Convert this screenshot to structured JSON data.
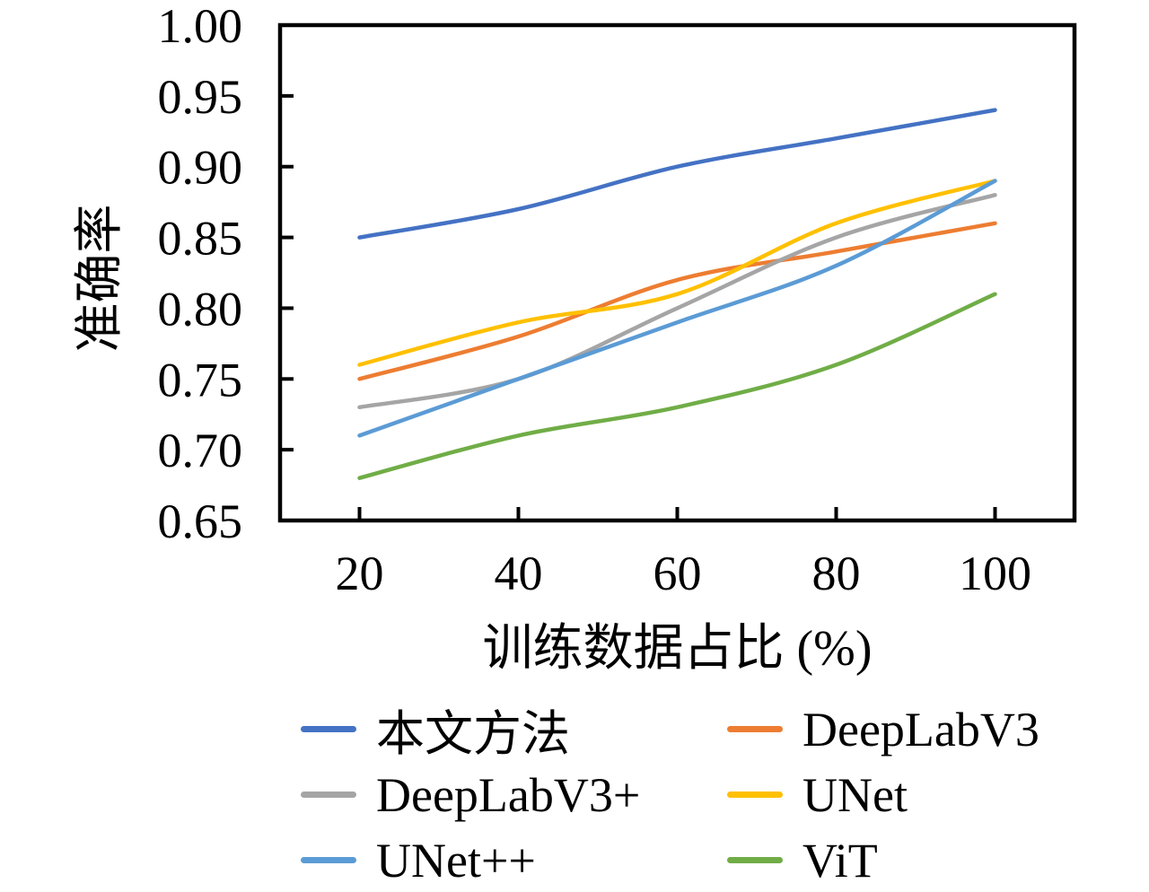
{
  "chart_data": {
    "type": "line",
    "x": [
      20,
      40,
      60,
      80,
      100
    ],
    "xticks": [
      20,
      40,
      60,
      80,
      100
    ],
    "yticks": [
      0.65,
      0.7,
      0.75,
      0.8,
      0.85,
      0.9,
      0.95,
      1.0
    ],
    "ylim": [
      0.65,
      1.0
    ],
    "xlabel": "训练数据占比 (%)",
    "ylabel": "准确率",
    "title": "",
    "grid": false,
    "smooth_lines": true,
    "legend_position": "bottom",
    "axis_color": "#000000",
    "series": [
      {
        "name": "本文方法",
        "color": "#4472C4",
        "values": [
          0.85,
          0.87,
          0.9,
          0.92,
          0.94
        ]
      },
      {
        "name": "DeepLabV3",
        "color": "#ED7D31",
        "values": [
          0.75,
          0.78,
          0.82,
          0.84,
          0.86
        ]
      },
      {
        "name": "DeepLabV3+",
        "color": "#A5A5A5",
        "values": [
          0.73,
          0.75,
          0.8,
          0.85,
          0.88
        ]
      },
      {
        "name": "UNet",
        "color": "#FFC000",
        "values": [
          0.76,
          0.79,
          0.81,
          0.86,
          0.89
        ]
      },
      {
        "name": "UNet++",
        "color": "#5B9BD5",
        "values": [
          0.71,
          0.75,
          0.79,
          0.83,
          0.89
        ]
      },
      {
        "name": "ViT",
        "color": "#70AD47",
        "values": [
          0.68,
          0.71,
          0.73,
          0.76,
          0.81
        ]
      }
    ]
  }
}
